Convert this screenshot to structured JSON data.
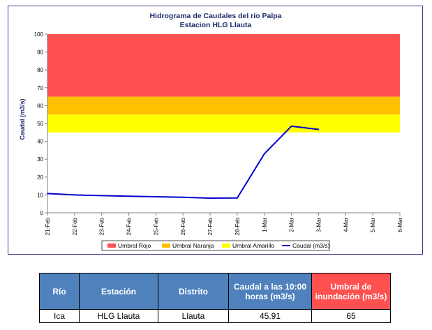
{
  "chart_data": {
    "type": "line",
    "title": "Hidrograma de Caudales del río Palpa",
    "subtitle": "Estacion HLG Llauta",
    "ylabel": "Caudal (m3/s)",
    "xlabel": "",
    "ylim": [
      0,
      100
    ],
    "y_ticks": [
      "0",
      "10",
      "20",
      "30",
      "40",
      "50",
      "60",
      "70",
      "80",
      "90",
      "100"
    ],
    "categories": [
      "21-Feb",
      "22-Feb",
      "23-Feb",
      "24-Feb",
      "25-Feb",
      "26-Feb",
      "27-Feb",
      "28-Feb",
      "1-Mar",
      "2-Mar",
      "3-Mar",
      "4-Mar",
      "5-Mar",
      "6-Mar"
    ],
    "bands": [
      {
        "name": "Umbral Rojo",
        "from": 65,
        "to": 100,
        "color": "#ff5050"
      },
      {
        "name": "Umbral Naranja",
        "from": 55,
        "to": 65,
        "color": "#ffc000"
      },
      {
        "name": "Umbral Amarillo",
        "from": 45,
        "to": 55,
        "color": "#ffff00"
      }
    ],
    "series": [
      {
        "name": "Caudal (m3/s)",
        "color": "#0000cc",
        "values": [
          10.8,
          10.0,
          9.6,
          9.3,
          9.0,
          8.7,
          8.2,
          8.3,
          33.0,
          48.5,
          46.7,
          null,
          null,
          null
        ]
      }
    ],
    "grid": false,
    "legend_position": "bottom"
  },
  "table": {
    "headers": [
      "Río",
      "Estación",
      "Distrito",
      "Caudal a las 10:00 horas (m3/s)",
      "Umbral de inundación (m3/s)"
    ],
    "rows": [
      [
        "Ica",
        "HLG Llauta",
        "Llauta",
        "45.91",
        "65"
      ]
    ]
  },
  "colors": {
    "header_blue": "#4f81bd",
    "header_red": "#ff5050",
    "frame": "#3b3b8c"
  }
}
